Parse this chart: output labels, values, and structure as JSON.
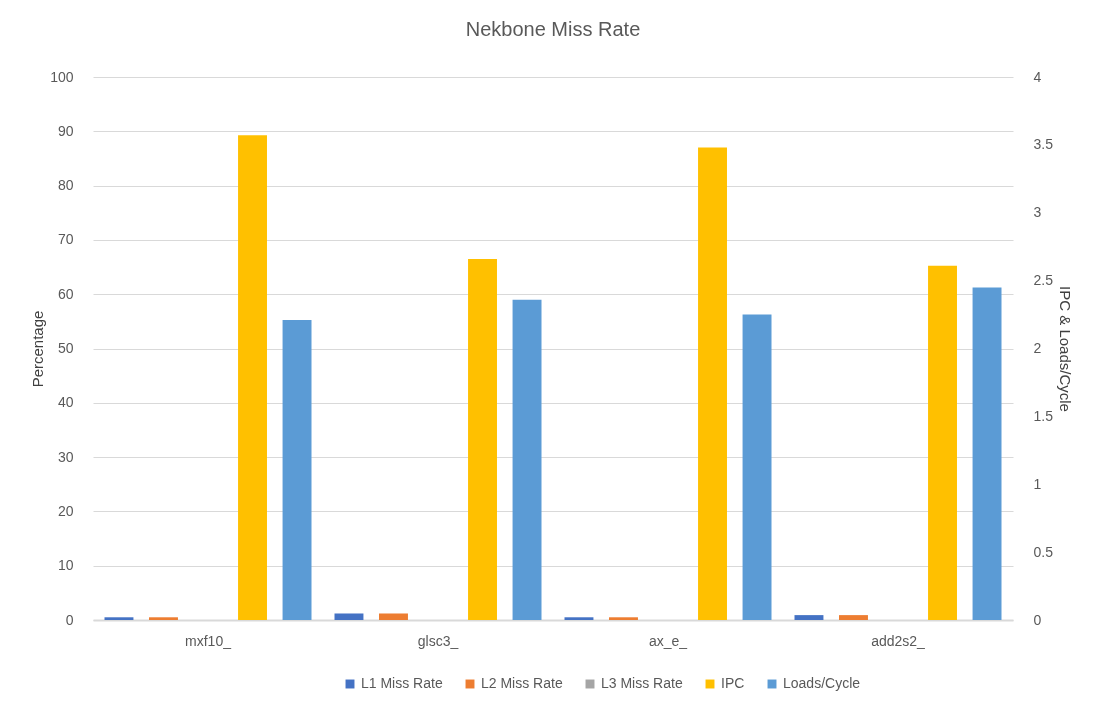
{
  "chart_data": {
    "type": "bar",
    "title": "Nekbone  Miss Rate",
    "ylabel": "Percentage",
    "y2label": "IPC & Loads/Cycle",
    "categories": [
      "mxf10_",
      "glsc3_",
      "ax_e_",
      "add2s2_"
    ],
    "series": [
      {
        "name": "L1 Miss Rate",
        "color": "#4472c4",
        "values": [
          0.5,
          1.2,
          0.5,
          0.9
        ]
      },
      {
        "name": "L2 Miss Rate",
        "color": "#ed7d31",
        "values": [
          0.5,
          1.2,
          0.5,
          0.9
        ]
      },
      {
        "name": "L3 Miss Rate",
        "color": "#a5a5a5",
        "values": [
          0,
          0,
          0,
          0
        ]
      },
      {
        "name": "IPC",
        "color": "#ffc000",
        "axis": "y2",
        "values": [
          3.57,
          2.66,
          3.48,
          2.61
        ]
      },
      {
        "name": "Loads/Cycle",
        "color": "#5b9bd5",
        "axis": "y2",
        "values": [
          2.21,
          2.36,
          2.25,
          2.45
        ]
      }
    ],
    "ylim": [
      0,
      100
    ],
    "yticks": [
      0,
      10,
      20,
      30,
      40,
      50,
      60,
      70,
      80,
      90,
      100
    ],
    "y2lim": [
      0,
      4
    ],
    "y2ticks": [
      0,
      0.5,
      1,
      1.5,
      2,
      2.5,
      3,
      3.5,
      4
    ],
    "grid": "y",
    "legend": "bottom"
  }
}
